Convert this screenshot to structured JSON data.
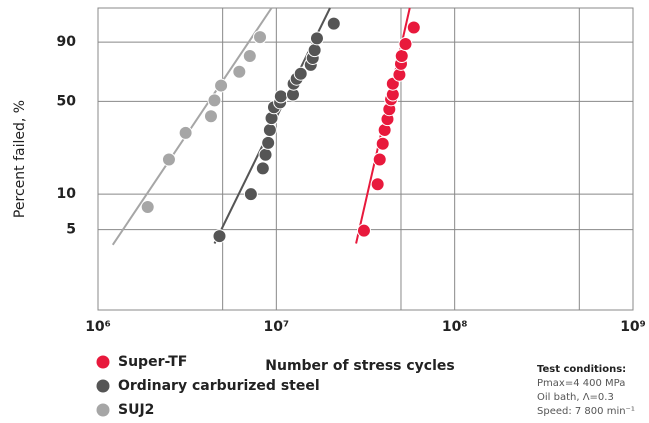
{
  "chart_data": {
    "type": "scatter",
    "xlabel": "Number of stress cycles",
    "ylabel": "Percent failed, %",
    "xscale": "log",
    "yscale": "weibull",
    "xlim": [
      1000000,
      1000000000
    ],
    "xticks": [
      {
        "value": 1000000,
        "label": "10⁶"
      },
      {
        "value": 10000000,
        "label": "10⁷"
      },
      {
        "value": 100000000,
        "label": "10⁸"
      },
      {
        "value": 1000000000,
        "label": "10⁹"
      }
    ],
    "xminor": [
      5000000,
      50000000,
      500000000
    ],
    "ylim": [
      1,
      99
    ],
    "yticks": [
      5,
      10,
      50,
      90
    ],
    "grid": true,
    "legend": "bottom-left",
    "series": [
      {
        "name": "Super-TF",
        "color": "#e8193c",
        "x": [
          31000000,
          37000000,
          38000000,
          39500000,
          40500000,
          42000000,
          43000000,
          44000000,
          45000000,
          45000000,
          49000000,
          50000000,
          50500000,
          53000000,
          59000000
        ],
        "values": [
          4.9,
          12.1,
          19.2,
          25.4,
          32.1,
          38.3,
          44.6,
          51.4,
          54.9,
          62.9,
          69.5,
          77.3,
          82.4,
          89.1,
          95.5
        ],
        "fit": {
          "x": [
            28000000,
            56000000
          ],
          "y": [
            3.8,
            99
          ]
        }
      },
      {
        "name": "Ordinary carburized steel",
        "color": "#555555",
        "x": [
          4800000,
          7200000,
          8400000,
          8700000,
          9000000,
          9200000,
          9400000,
          9700000,
          10500000,
          10600000,
          12400000,
          12500000,
          13000000,
          13700000,
          15600000,
          16000000,
          16400000,
          16900000,
          21000000
        ],
        "values": [
          4.4,
          10.0,
          16.3,
          20.9,
          25.8,
          32.1,
          38.9,
          45.9,
          49.3,
          53.5,
          54.9,
          62.9,
          66.6,
          70.3,
          76.6,
          81.2,
          85.9,
          91.7,
          96.5
        ],
        "fit": {
          "x": [
            4500000,
            20000000
          ],
          "y": [
            3.8,
            99
          ]
        }
      },
      {
        "name": "SUJ2",
        "color": "#a6a6a6",
        "x": [
          1900000,
          2500000,
          3100000,
          4300000,
          4500000,
          4900000,
          6200000,
          7100000,
          8100000
        ],
        "values": [
          7.8,
          19.2,
          30.6,
          40.1,
          50.7,
          61.5,
          71.7,
          82.4,
          92.2
        ],
        "fit": {
          "x": [
            1210000,
            9400000
          ],
          "y": [
            3.7,
            99
          ]
        }
      }
    ],
    "notes": {
      "title": "Test conditions:",
      "lines": [
        "Pmax=4 400 MPa",
        "Oil bath, Λ=0.3",
        "Speed: 7 800 min⁻¹"
      ]
    }
  }
}
